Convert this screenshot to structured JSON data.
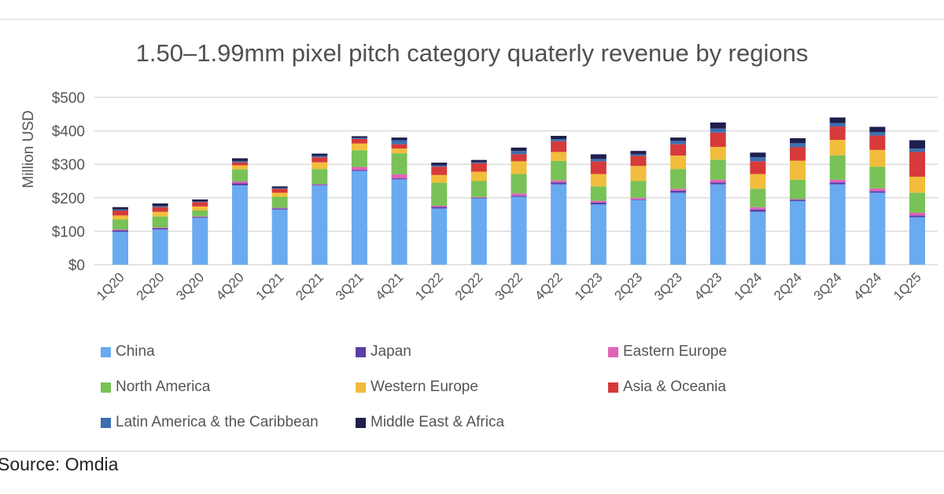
{
  "chart_data": {
    "type": "bar",
    "stacked": true,
    "title": "1.50–1.99mm pixel pitch category quaterly revenue by regions",
    "ylabel": "Million USD",
    "xlabel": "",
    "ylim": [
      0,
      500
    ],
    "yticks": [
      "$0",
      "$100",
      "$200",
      "$300",
      "$400",
      "$500"
    ],
    "grid": true,
    "legend_position": "bottom",
    "categories": [
      "1Q20",
      "2Q20",
      "3Q20",
      "4Q20",
      "1Q21",
      "2Q21",
      "3Q21",
      "4Q21",
      "1Q22",
      "2Q22",
      "3Q22",
      "4Q22",
      "1Q23",
      "2Q23",
      "3Q23",
      "4Q23",
      "1Q24",
      "2Q24",
      "3Q24",
      "4Q24",
      "1Q25"
    ],
    "series": [
      {
        "name": "China",
        "color": "#6aaaf0",
        "values": [
          98,
          105,
          140,
          237,
          165,
          237,
          280,
          255,
          168,
          198,
          203,
          240,
          180,
          193,
          215,
          240,
          158,
          190,
          240,
          215,
          142
        ]
      },
      {
        "name": "Japan",
        "color": "#5b3fa8",
        "values": [
          5,
          4,
          2,
          6,
          3,
          2,
          3,
          3,
          5,
          2,
          3,
          6,
          6,
          2,
          6,
          6,
          7,
          4,
          6,
          5,
          5
        ]
      },
      {
        "name": "Eastern Europe",
        "color": "#e063b8",
        "values": [
          2,
          2,
          2,
          6,
          2,
          2,
          9,
          12,
          3,
          2,
          7,
          6,
          5,
          5,
          6,
          8,
          7,
          2,
          8,
          8,
          8
        ]
      },
      {
        "name": "North America",
        "color": "#78c257",
        "values": [
          30,
          33,
          18,
          36,
          33,
          45,
          50,
          63,
          69,
          48,
          58,
          58,
          43,
          50,
          59,
          60,
          55,
          58,
          73,
          65,
          60
        ]
      },
      {
        "name": "Western Europe",
        "color": "#f2bd3c",
        "values": [
          12,
          14,
          12,
          12,
          12,
          20,
          20,
          14,
          23,
          28,
          38,
          27,
          37,
          45,
          40,
          38,
          44,
          57,
          46,
          50,
          48
        ]
      },
      {
        "name": "Asia & Oceania",
        "color": "#d63a3a",
        "values": [
          15,
          14,
          13,
          9,
          12,
          15,
          14,
          13,
          25,
          25,
          21,
          32,
          38,
          30,
          34,
          43,
          38,
          40,
          40,
          43,
          74
        ]
      },
      {
        "name": "Latin America & the Caribbean",
        "color": "#3d6fb0",
        "values": [
          3,
          3,
          2,
          4,
          2,
          4,
          3,
          12,
          4,
          3,
          10,
          6,
          7,
          5,
          10,
          12,
          12,
          12,
          10,
          10,
          10
        ]
      },
      {
        "name": "Middle East & Africa",
        "color": "#1f1f4d",
        "values": [
          7,
          8,
          6,
          8,
          5,
          7,
          5,
          8,
          8,
          7,
          10,
          10,
          14,
          10,
          10,
          18,
          14,
          15,
          17,
          16,
          25
        ]
      }
    ]
  },
  "legend_order": [
    0,
    1,
    2,
    3,
    4,
    5,
    6,
    7
  ],
  "source": "Source: Omdia"
}
